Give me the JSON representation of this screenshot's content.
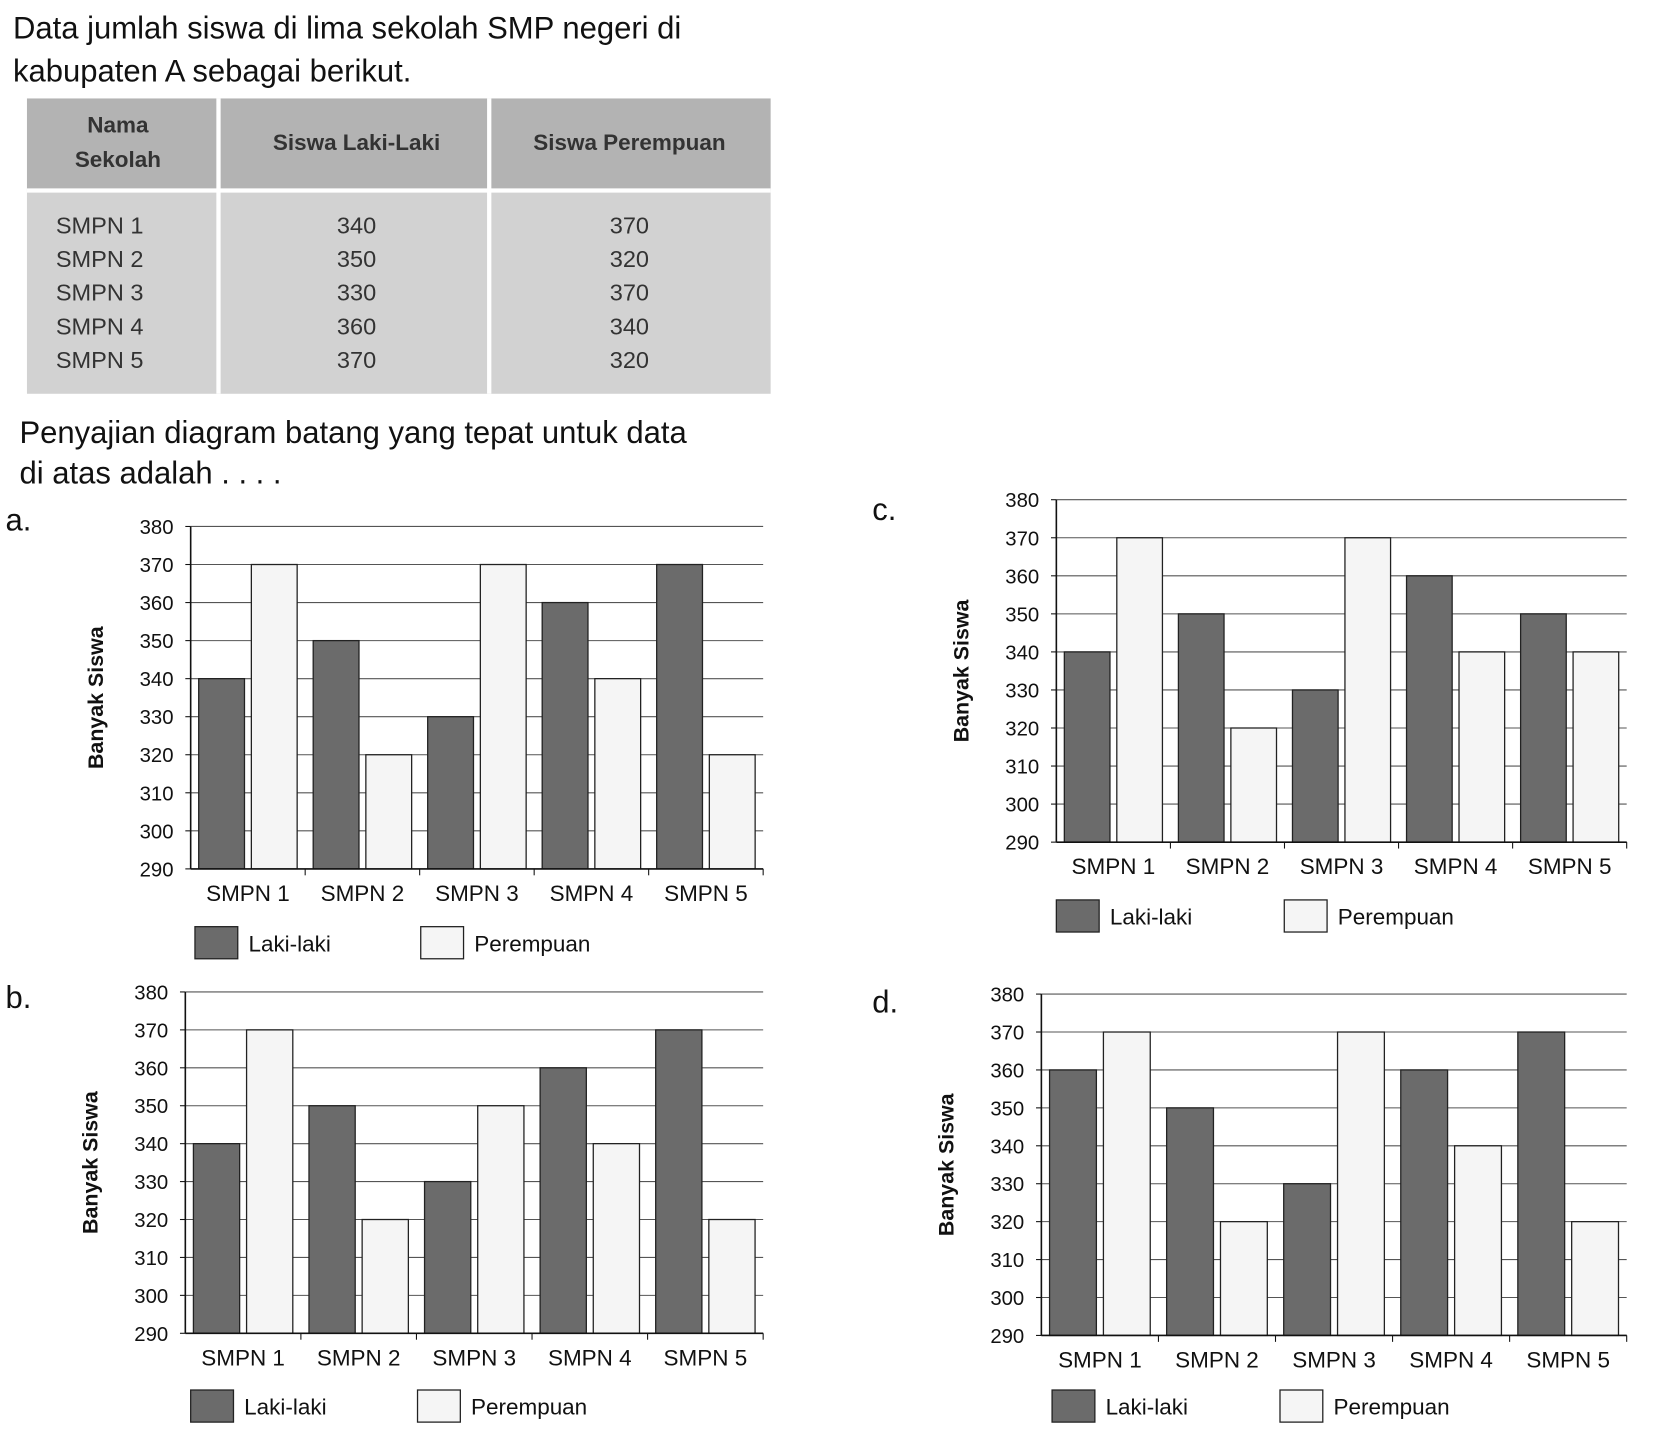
{
  "question": [
    "Data jumlah siswa di lima sekolah SMP negeri di",
    "kabupaten A sebagai berikut."
  ],
  "table": {
    "header": [
      [
        "Nama",
        "Sekolah"
      ],
      [
        "Siswa Laki-Laki"
      ],
      [
        "Siswa Perempuan"
      ]
    ],
    "rows": [
      [
        "SMPN 1",
        340,
        370
      ],
      [
        "SMPN 2",
        350,
        320
      ],
      [
        "SMPN 3",
        330,
        370
      ],
      [
        "SMPN 4",
        360,
        340
      ],
      [
        "SMPN 5",
        370,
        320
      ]
    ]
  },
  "prompt": [
    "Penyajian diagram batang yang tepat untuk data",
    "di atas adalah . . . ."
  ],
  "options": [
    {
      "label": "a.",
      "chart": {
        "type": "bar",
        "y_label": "Banyak Siswa",
        "categories": [
          "SMPN 1",
          "SMPN 2",
          "SMPN 3",
          "SMPN 4",
          "SMPN 5"
        ],
        "series": [
          {
            "name": "Laki-laki",
            "color": "#6b6b6b",
            "values": [
              340,
              350,
              330,
              360,
              370
            ]
          },
          {
            "name": "Perempuan",
            "color": "#f5f5f5",
            "values": [
              370,
              320,
              370,
              340,
              320
            ]
          }
        ],
        "ylim": [
          290,
          380
        ],
        "yticks": [
          290,
          300,
          310,
          320,
          330,
          340,
          350,
          360,
          370,
          380
        ],
        "grid": true,
        "legend": "bottom"
      }
    },
    {
      "label": "b.",
      "chart": {
        "type": "bar",
        "y_label": "Banyak Siswa",
        "categories": [
          "SMPN 1",
          "SMPN 2",
          "SMPN 3",
          "SMPN 4",
          "SMPN 5"
        ],
        "series": [
          {
            "name": "Laki-laki",
            "color": "#6b6b6b",
            "values": [
              340,
              350,
              330,
              360,
              370
            ]
          },
          {
            "name": "Perempuan",
            "color": "#f5f5f5",
            "values": [
              370,
              320,
              350,
              340,
              320
            ]
          }
        ],
        "ylim": [
          290,
          380
        ],
        "yticks": [
          290,
          300,
          310,
          320,
          330,
          340,
          350,
          360,
          370,
          380
        ],
        "grid": true,
        "legend": "bottom"
      }
    },
    {
      "label": "c.",
      "chart": {
        "type": "bar",
        "y_label": "Banyak Siswa",
        "categories": [
          "SMPN 1",
          "SMPN 2",
          "SMPN 3",
          "SMPN 4",
          "SMPN 5"
        ],
        "series": [
          {
            "name": "Laki-laki",
            "color": "#6b6b6b",
            "values": [
              340,
              350,
              330,
              360,
              350
            ]
          },
          {
            "name": "Perempuan",
            "color": "#f5f5f5",
            "values": [
              370,
              320,
              370,
              340,
              340
            ]
          }
        ],
        "ylim": [
          290,
          380
        ],
        "yticks": [
          290,
          300,
          310,
          320,
          330,
          340,
          350,
          360,
          370,
          380
        ],
        "grid": true,
        "legend": "bottom"
      }
    },
    {
      "label": "d.",
      "chart": {
        "type": "bar",
        "y_label": "Banyak Siswa",
        "categories": [
          "SMPN 1",
          "SMPN 2",
          "SMPN 3",
          "SMPN 4",
          "SMPN 5"
        ],
        "series": [
          {
            "name": "Laki-laki",
            "color": "#6b6b6b",
            "values": [
              360,
              350,
              330,
              360,
              370
            ]
          },
          {
            "name": "Perempuan",
            "color": "#f5f5f5",
            "values": [
              370,
              320,
              370,
              340,
              320
            ]
          }
        ],
        "ylim": [
          290,
          380
        ],
        "yticks": [
          290,
          300,
          310,
          320,
          330,
          340,
          350,
          360,
          370,
          380
        ],
        "grid": true,
        "legend": "bottom"
      }
    }
  ]
}
